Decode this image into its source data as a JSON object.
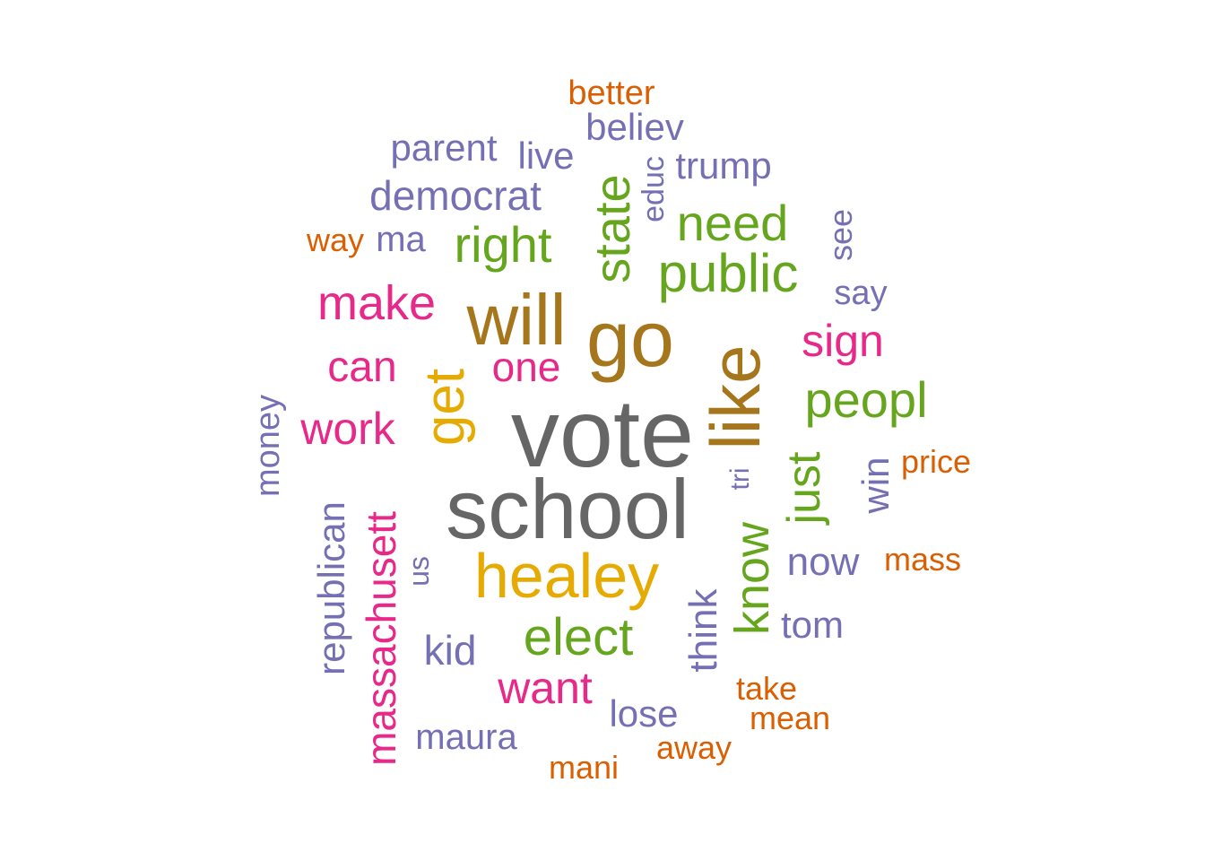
{
  "colors": {
    "gray": "#666666",
    "brown": "#A6761D",
    "yellow": "#E6AB02",
    "green": "#66A61E",
    "pink": "#E7298A",
    "purple": "#7570B3",
    "orange": "#D95F02"
  },
  "words": [
    {
      "text": "vote",
      "color": "gray",
      "weight": 10
    },
    {
      "text": "school",
      "color": "gray",
      "weight": 10
    },
    {
      "text": "go",
      "color": "brown",
      "weight": 8
    },
    {
      "text": "like",
      "color": "brown",
      "weight": 7
    },
    {
      "text": "will",
      "color": "brown",
      "weight": 7
    },
    {
      "text": "healey",
      "color": "yellow",
      "weight": 7
    },
    {
      "text": "get",
      "color": "yellow",
      "weight": 6
    },
    {
      "text": "public",
      "color": "green",
      "weight": 6
    },
    {
      "text": "state",
      "color": "green",
      "weight": 5
    },
    {
      "text": "right",
      "color": "green",
      "weight": 5
    },
    {
      "text": "need",
      "color": "green",
      "weight": 5
    },
    {
      "text": "peopl",
      "color": "green",
      "weight": 5
    },
    {
      "text": "just",
      "color": "green",
      "weight": 5
    },
    {
      "text": "know",
      "color": "green",
      "weight": 5
    },
    {
      "text": "elect",
      "color": "green",
      "weight": 5
    },
    {
      "text": "make",
      "color": "pink",
      "weight": 5
    },
    {
      "text": "sign",
      "color": "pink",
      "weight": 4
    },
    {
      "text": "can",
      "color": "pink",
      "weight": 4
    },
    {
      "text": "one",
      "color": "pink",
      "weight": 4
    },
    {
      "text": "work",
      "color": "pink",
      "weight": 4
    },
    {
      "text": "massachusett",
      "color": "pink",
      "weight": 4
    },
    {
      "text": "want",
      "color": "pink",
      "weight": 4
    },
    {
      "text": "democrat",
      "color": "purple",
      "weight": 3
    },
    {
      "text": "republican",
      "color": "purple",
      "weight": 3
    },
    {
      "text": "parent",
      "color": "purple",
      "weight": 3
    },
    {
      "text": "trump",
      "color": "purple",
      "weight": 3
    },
    {
      "text": "now",
      "color": "purple",
      "weight": 3
    },
    {
      "text": "tom",
      "color": "purple",
      "weight": 3
    },
    {
      "text": "kid",
      "color": "purple",
      "weight": 3
    },
    {
      "text": "think",
      "color": "purple",
      "weight": 3
    },
    {
      "text": "win",
      "color": "purple",
      "weight": 3
    },
    {
      "text": "money",
      "color": "purple",
      "weight": 3
    },
    {
      "text": "believ",
      "color": "purple",
      "weight": 3
    },
    {
      "text": "live",
      "color": "purple",
      "weight": 3
    },
    {
      "text": "ma",
      "color": "purple",
      "weight": 3
    },
    {
      "text": "see",
      "color": "purple",
      "weight": 3
    },
    {
      "text": "say",
      "color": "purple",
      "weight": 3
    },
    {
      "text": "educ",
      "color": "purple",
      "weight": 3
    },
    {
      "text": "tri",
      "color": "purple",
      "weight": 3
    },
    {
      "text": "us",
      "color": "purple",
      "weight": 3
    },
    {
      "text": "lose",
      "color": "purple",
      "weight": 3
    },
    {
      "text": "maura",
      "color": "purple",
      "weight": 3
    },
    {
      "text": "better",
      "color": "orange",
      "weight": 2
    },
    {
      "text": "way",
      "color": "orange",
      "weight": 2
    },
    {
      "text": "price",
      "color": "orange",
      "weight": 2
    },
    {
      "text": "mass",
      "color": "orange",
      "weight": 2
    },
    {
      "text": "take",
      "color": "orange",
      "weight": 2
    },
    {
      "text": "mean",
      "color": "orange",
      "weight": 2
    },
    {
      "text": "away",
      "color": "orange",
      "weight": 2
    },
    {
      "text": "mani",
      "color": "orange",
      "weight": 2
    }
  ]
}
